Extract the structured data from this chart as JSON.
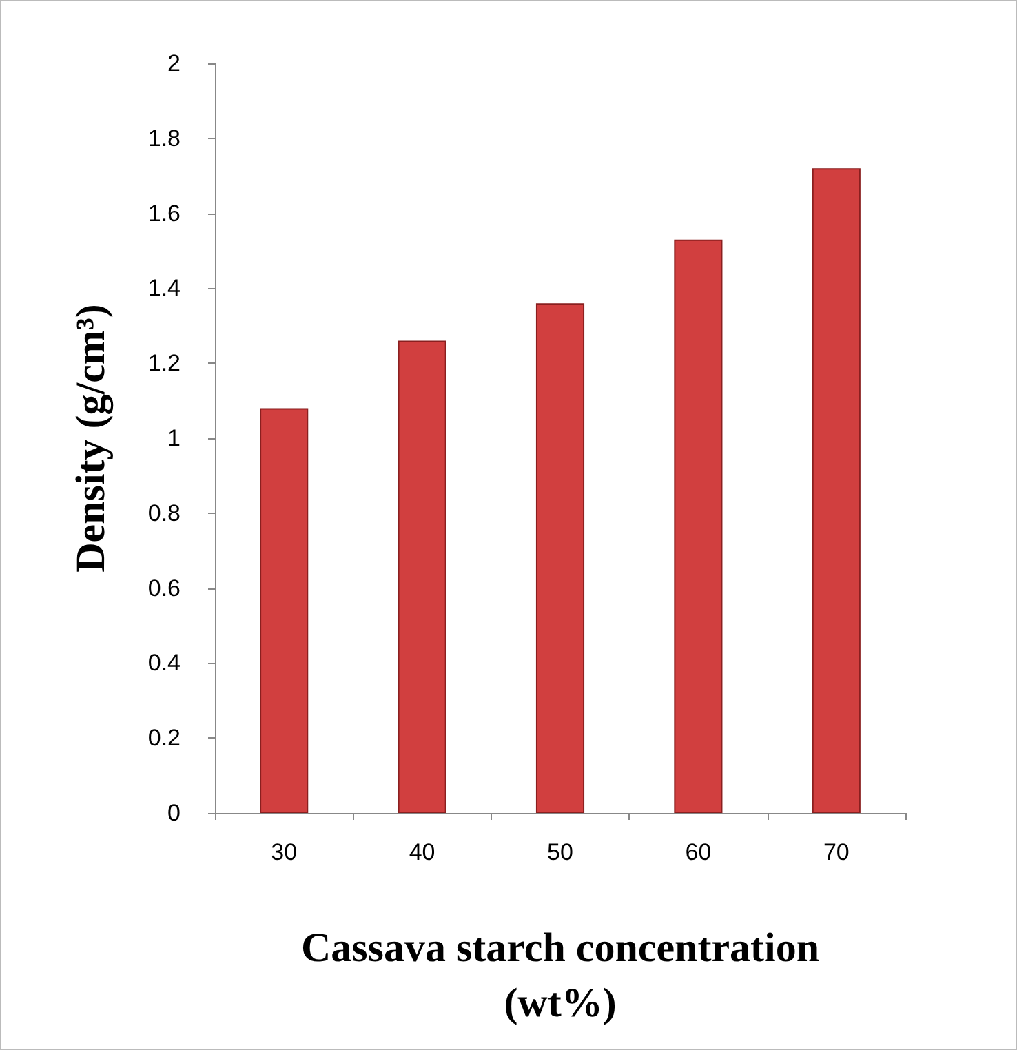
{
  "chart_data": {
    "type": "bar",
    "xlabel": "Cassava starch concentration (wt%)",
    "ylabel": "Density (g/cm³)",
    "categories": [
      "30",
      "40",
      "50",
      "60",
      "70"
    ],
    "values": [
      1.08,
      1.26,
      1.36,
      1.53,
      1.72
    ],
    "color": "#d13f3f",
    "ylim": [
      0,
      2
    ],
    "yticks": [
      0,
      0.2,
      0.4,
      0.6,
      0.8,
      1,
      1.2,
      1.4,
      1.6,
      1.8,
      2
    ],
    "grid": false
  }
}
